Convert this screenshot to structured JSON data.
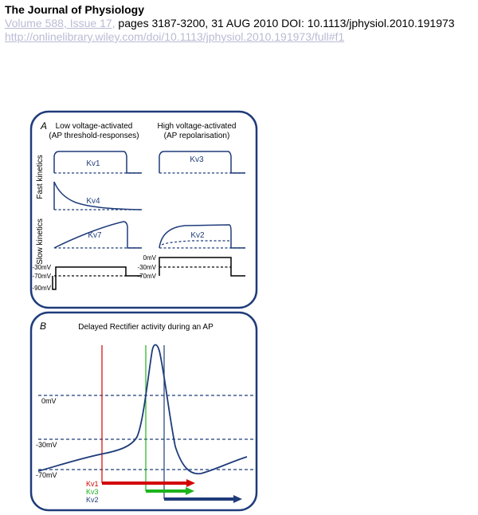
{
  "header": {
    "journal_title": "The Journal of Physiology",
    "volume_issue": "Volume 588, Issue 17,",
    "citation_rest": " pages 3187-3200, 31 AUG 2010 DOI: 10.1113/jphysiol.2010.191973",
    "url": "http://onlinelibrary.wiley.com/doi/10.1113/jphysiol.2010.191973/full#f1"
  },
  "panel_a": {
    "letter": "A",
    "col_left_title_1": "Low voltage-activated",
    "col_left_title_2": "(AP threshold-responses)",
    "col_right_title_1": "High voltage-activated",
    "col_right_title_2": "(AP repolarisation)",
    "row_fast_label": "Fast kinetics",
    "row_slow_label": "Slow kinetics",
    "channels": {
      "kv1": "Kv1",
      "kv3": "Kv3",
      "kv4": "Kv4",
      "kv7": "Kv7",
      "kv2": "Kv2"
    },
    "left_protocol_labels": {
      "a": "-30mV",
      "b": "-70mV",
      "c": "-90mV"
    },
    "right_protocol_labels": {
      "a": "0mV",
      "b": "-30mV",
      "c": "-70mV"
    }
  },
  "panel_b": {
    "letter": "B",
    "title": "Delayed Rectifier activity during an AP",
    "voltage_labels": {
      "v0": "0mV",
      "v30": "-30mV",
      "v70": "-70mV"
    },
    "legend": {
      "kv1": "Kv1",
      "kv3": "Kv3",
      "kv2": "Kv2"
    },
    "colors": {
      "kv1": "#d40000",
      "kv3": "#1db31d",
      "kv2": "#1f3c7a",
      "frame": "#1f3c7a",
      "trace": "#1f3c7a"
    }
  }
}
